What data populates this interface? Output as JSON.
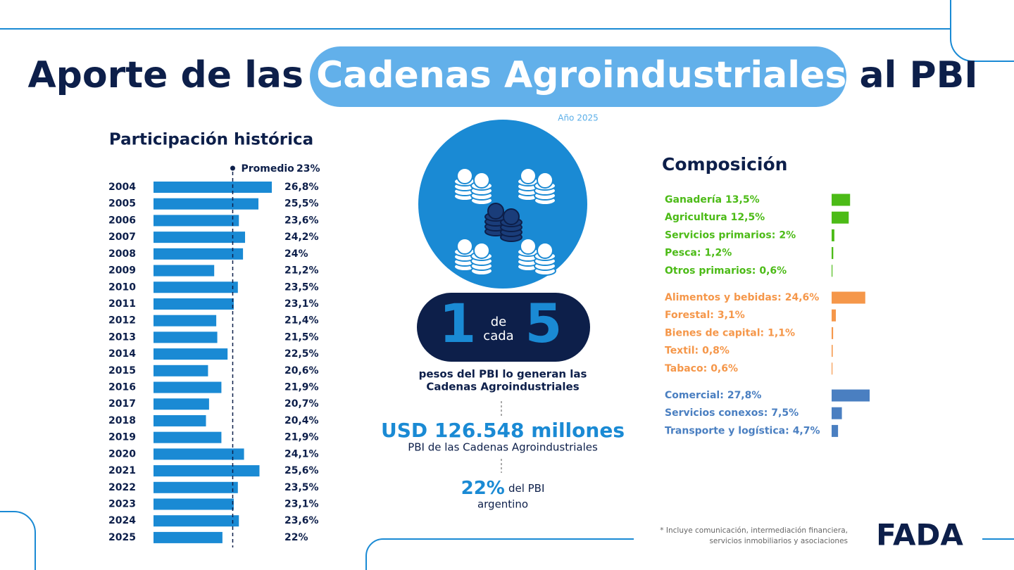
{
  "header": {
    "title_before": "Aporte de las",
    "title_highlight": "Cadenas Agroindustriales",
    "title_after": "al PBI",
    "year": "Año 2025"
  },
  "chart_data": [
    {
      "type": "bar",
      "orientation": "horizontal",
      "title": "Participación histórica",
      "categories": [
        "2004",
        "2005",
        "2006",
        "2007",
        "2008",
        "2009",
        "2010",
        "2011",
        "2012",
        "2013",
        "2014",
        "2015",
        "2016",
        "2017",
        "2018",
        "2019",
        "2020",
        "2021",
        "2022",
        "2023",
        "2024",
        "2025"
      ],
      "values": [
        26.8,
        25.5,
        23.6,
        24.2,
        24,
        21.2,
        23.5,
        23.1,
        21.4,
        21.5,
        22.5,
        20.6,
        21.9,
        20.7,
        20.4,
        21.9,
        24.1,
        25.6,
        23.5,
        23.1,
        23.6,
        22
      ],
      "value_labels": [
        "26,8%",
        "25,5%",
        "23,6%",
        "24,2%",
        "24%",
        "21,2%",
        "23,5%",
        "23,1%",
        "21,4%",
        "21,5%",
        "22,5%",
        "20,6%",
        "21,9%",
        "20,7%",
        "20,4%",
        "21,9%",
        "24,1%",
        "25,6%",
        "23,5%",
        "23,1%",
        "23,6%",
        "22%"
      ],
      "color": "#1a8ad4",
      "xlim": [
        15.3,
        27
      ],
      "average": {
        "label": "Promedio",
        "value": 23,
        "value_label": "23%"
      }
    },
    {
      "type": "bar",
      "orientation": "horizontal",
      "title": "Composición",
      "categories": [
        "Ganadería",
        "Agricultura",
        "Servicios primarios:",
        "Pesca:",
        "Otros primarios:",
        "Alimentos y bebidas:",
        "Forestal:",
        "Bienes de capital:",
        "Textil:",
        "Tabaco:",
        "Comercial:",
        "Servicios conexos:",
        "Transporte y logística:"
      ],
      "values": [
        13.5,
        12.5,
        2,
        1.2,
        0.6,
        24.6,
        3.1,
        1.1,
        0.8,
        0.6,
        27.8,
        7.5,
        4.7
      ],
      "value_labels": [
        "13,5%",
        "12,5%",
        "2%",
        "1,2%",
        "0,6%",
        "24,6%",
        "3,1%",
        "1,1%",
        "0,8%",
        "0,6%",
        "27,8%",
        "7,5%",
        "4,7%"
      ],
      "colors": [
        "#4cbb17",
        "#4cbb17",
        "#4cbb17",
        "#4cbb17",
        "#4cbb17",
        "#f5974a",
        "#f5974a",
        "#f5974a",
        "#f5974a",
        "#f5974a",
        "#4a7fc1",
        "#4a7fc1",
        "#4a7fc1"
      ],
      "xlim": [
        0,
        28
      ]
    }
  ],
  "center": {
    "one": "1",
    "de": "de",
    "cada": "cada",
    "five": "5",
    "line1": "pesos del PBI lo generan las",
    "line2": "Cadenas Agroindustriales",
    "usd": "USD 126.548 millones",
    "usd_caption": "PBI de las Cadenas Agroindustriales",
    "pct": "22%",
    "pct_rest": "del PBI",
    "pct_line2": "argentino"
  },
  "footnote": [
    "* Incluye comunicación, intermediación financiera,",
    "servicios inmobiliarios y asociaciones"
  ],
  "logo": "FADA"
}
